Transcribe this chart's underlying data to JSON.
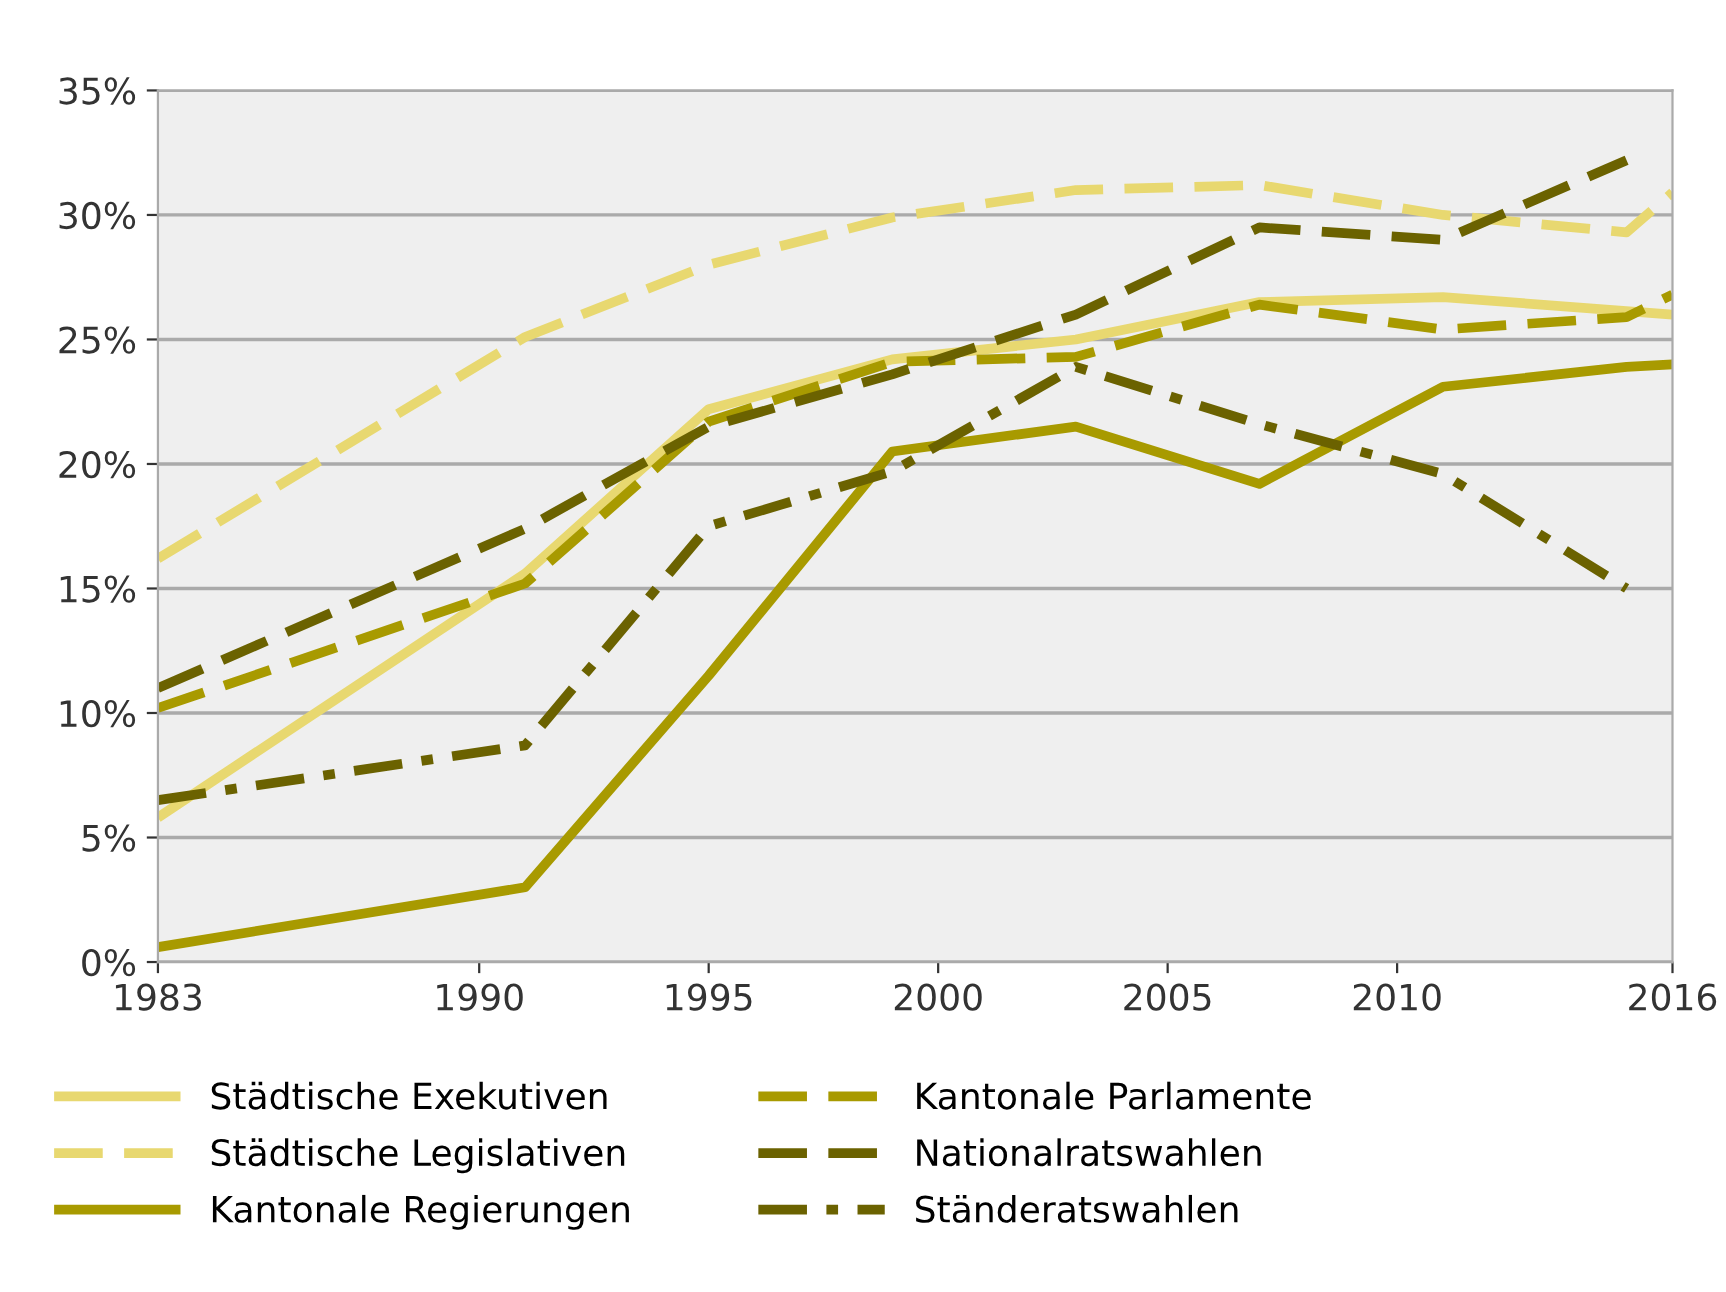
{
  "chart_data": {
    "type": "line",
    "xlim": [
      1983,
      2016
    ],
    "xticks": [
      1983,
      1990,
      1995,
      2000,
      2005,
      2010,
      2016
    ],
    "ylim": [
      0,
      35
    ],
    "yticks": [
      {
        "value": 0,
        "label": "0%"
      },
      {
        "value": 5,
        "label": "5%"
      },
      {
        "value": 10,
        "label": "10%"
      },
      {
        "value": 15,
        "label": "15%"
      },
      {
        "value": 20,
        "label": "20%"
      },
      {
        "value": 25,
        "label": "25%"
      },
      {
        "value": 30,
        "label": "30%"
      },
      {
        "value": 35,
        "label": "35%"
      }
    ],
    "grid": "y",
    "legend": "bottom",
    "series": [
      {
        "name": "Städtische Exekutiven",
        "color": "#e8d870",
        "line_style": "solid",
        "x": [
          1983,
          1991,
          1995,
          1999,
          2003,
          2007,
          2011,
          2016
        ],
        "values": [
          5.8,
          15.6,
          22.2,
          24.2,
          25.0,
          26.5,
          26.7,
          26.0
        ]
      },
      {
        "name": "Städtische Legislativen",
        "color": "#e8d870",
        "line_style": "dashed",
        "x": [
          1983,
          1991,
          1995,
          1999,
          2003,
          2007,
          2011,
          2015,
          2016
        ],
        "values": [
          16.2,
          25.1,
          28.0,
          29.9,
          31.0,
          31.2,
          30.0,
          29.3,
          30.9
        ]
      },
      {
        "name": "Kantonale Regierungen",
        "color": "#a89a00",
        "line_style": "solid",
        "x": [
          1983,
          1991,
          1995,
          1999,
          2003,
          2007,
          2011,
          2015,
          2016
        ],
        "values": [
          0.6,
          3.0,
          11.5,
          20.5,
          21.5,
          19.2,
          23.1,
          23.9,
          24.0
        ]
      },
      {
        "name": "Kantonale Parlamente",
        "color": "#a89a00",
        "line_style": "dashed",
        "x": [
          1983,
          1991,
          1995,
          1999,
          2003,
          2007,
          2011,
          2015,
          2016
        ],
        "values": [
          10.2,
          15.2,
          21.7,
          24.1,
          24.3,
          26.4,
          25.4,
          25.9,
          26.8
        ]
      },
      {
        "name": "Nationalratswahlen",
        "color": "#6b6200",
        "line_style": "dashed",
        "x": [
          1983,
          1991,
          1995,
          1999,
          2003,
          2007,
          2011,
          2015
        ],
        "values": [
          11.0,
          17.4,
          21.5,
          23.6,
          26.0,
          29.5,
          29.0,
          32.2
        ]
      },
      {
        "name": "Ständeratswahlen",
        "color": "#6b6200",
        "line_style": "dashdot",
        "x": [
          1983,
          1991,
          1995,
          1999,
          2003,
          2007,
          2011,
          2015
        ],
        "values": [
          6.5,
          8.7,
          17.5,
          19.7,
          23.9,
          21.6,
          19.6,
          15.0
        ]
      }
    ]
  }
}
